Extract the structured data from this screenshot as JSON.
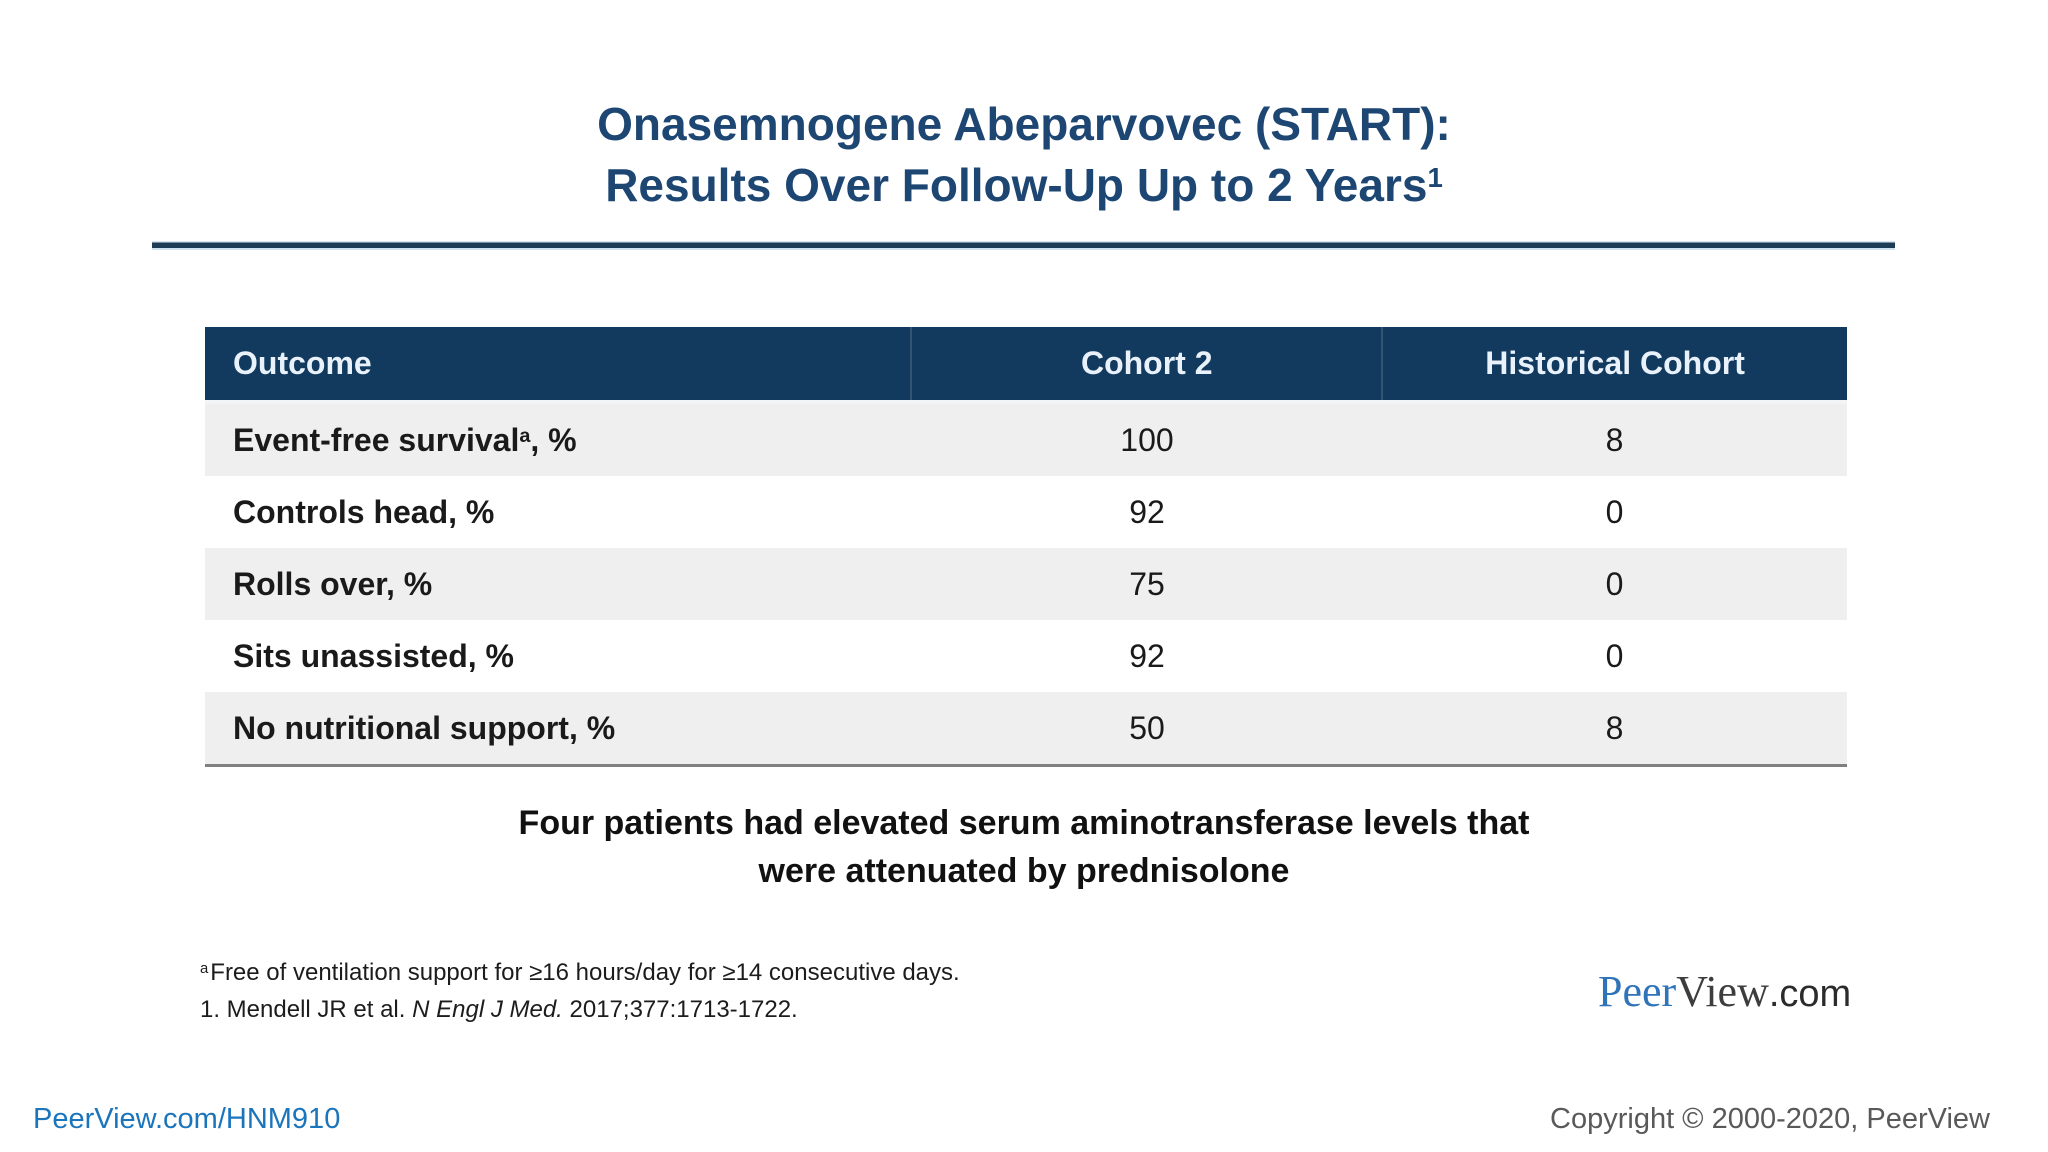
{
  "page": {
    "title": {
      "line1": "Onasemnogene Abeparvovec (START):",
      "line2": "Results Over Follow-Up Up to 2 Years",
      "line2_sup": "1"
    },
    "table": {
      "header": {
        "outcome": "Outcome",
        "cohort2": "Cohort 2",
        "historical": "Historical Cohort"
      },
      "rows": [
        {
          "label": "Event-free survival",
          "label_sup": "a",
          "label_suffix": ", %",
          "cohort2": "100",
          "historical": "8"
        },
        {
          "label": "Controls head, %",
          "label_sup": "",
          "label_suffix": "",
          "cohort2": "92",
          "historical": "0"
        },
        {
          "label": "Rolls over, %",
          "label_sup": "",
          "label_suffix": "",
          "cohort2": "75",
          "historical": "0"
        },
        {
          "label": "Sits unassisted, %",
          "label_sup": "",
          "label_suffix": "",
          "cohort2": "92",
          "historical": "0"
        },
        {
          "label": "No nutritional support, %",
          "label_sup": "",
          "label_suffix": "",
          "cohort2": "50",
          "historical": "8"
        }
      ]
    },
    "statement": {
      "line1": "Four patients had elevated serum aminotransferase levels that",
      "line2": "were attenuated by prednisolone"
    },
    "footnotes": {
      "line1_sup": "a",
      "line1_text": "Free of ventilation support for ≥16 hours/day for ≥14 consecutive days.",
      "line2_prefix": "1. Mendell JR et al. ",
      "line2_italic": "N Engl J Med.",
      "line2_suffix": " 2017;377:1713-1722."
    },
    "logo": {
      "part1": "Peer",
      "part2": "View",
      "part3": ".com"
    },
    "footer": {
      "left_link": "PeerView.com/HNM910",
      "copyright": "Copyright © 2000-2020, PeerView"
    },
    "colors": {
      "title_navy": "#1d4673",
      "header_bg": "#123a5e",
      "header_text": "#e9f2fb",
      "row_gray": "#efefef",
      "table_bottom_border": "#808080",
      "link_blue": "#1b75bc",
      "logo_blue": "#2f74b9",
      "copyright_gray": "#595959"
    }
  }
}
